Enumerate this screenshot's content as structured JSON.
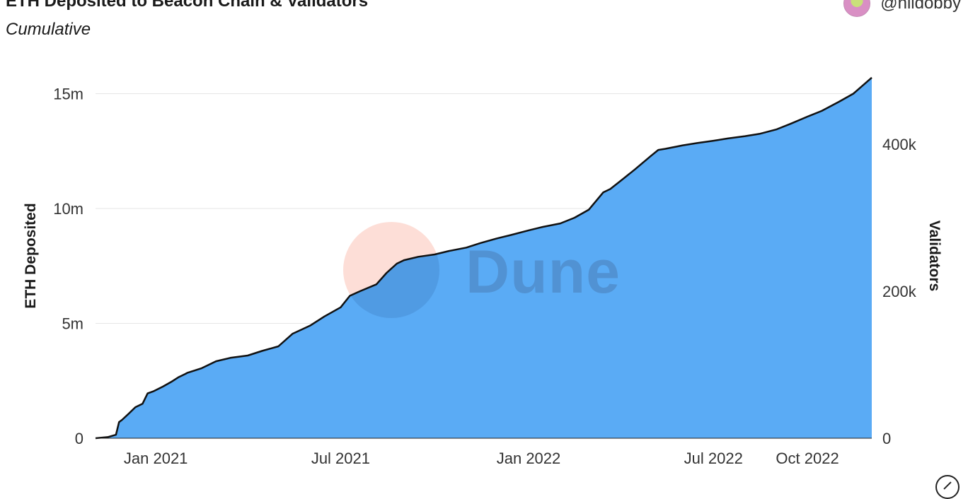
{
  "header": {
    "title": "ETH Deposited to Beacon Chain & Validators",
    "subtitle": "Cumulative",
    "author": "@hildobby",
    "watermark": "Dune"
  },
  "colors": {
    "area_fill": "#5aabf5",
    "line": "#111111",
    "grid": "#e6e6e6",
    "watermark_circle": "#fbc3b6"
  },
  "icons": {
    "expand": "expand-icon"
  },
  "chart_data": {
    "type": "area",
    "title": "ETH Deposited to Beacon Chain & Validators",
    "subtitle": "Cumulative",
    "xlabel": "",
    "ylabel": "ETH Deposited",
    "ylabel_right": "Validators",
    "xlim": [
      "2020-11-03",
      "2022-12-03"
    ],
    "ylim": [
      0,
      16000000
    ],
    "ylim_right": [
      0,
      500000
    ],
    "grid": true,
    "legend": "none",
    "x_ticks": [
      {
        "date": "2021-01-01",
        "label": "Jan 2021"
      },
      {
        "date": "2021-07-01",
        "label": "Jul 2021"
      },
      {
        "date": "2022-01-01",
        "label": "Jan 2022"
      },
      {
        "date": "2022-07-01",
        "label": "Jul 2022"
      },
      {
        "date": "2022-10-01",
        "label": "Oct 2022"
      }
    ],
    "y_ticks_left": [
      {
        "value": 0,
        "label": "0"
      },
      {
        "value": 5000000,
        "label": "5m"
      },
      {
        "value": 10000000,
        "label": "10m"
      },
      {
        "value": 15000000,
        "label": "15m"
      }
    ],
    "y_ticks_right": [
      {
        "value": 0,
        "label": "0"
      },
      {
        "value": 200000,
        "label": "200k"
      },
      {
        "value": 400000,
        "label": "400k"
      }
    ],
    "series": [
      {
        "name": "ETH Deposited",
        "x": [
          "2020-11-03",
          "2020-11-15",
          "2020-11-23",
          "2020-11-26",
          "2020-11-29",
          "2020-12-05",
          "2020-12-12",
          "2020-12-19",
          "2020-12-24",
          "2020-12-30",
          "2021-01-08",
          "2021-01-16",
          "2021-01-23",
          "2021-01-30",
          "2021-02-01",
          "2021-02-15",
          "2021-03-01",
          "2021-03-15",
          "2021-04-01",
          "2021-04-15",
          "2021-05-01",
          "2021-05-15",
          "2021-06-01",
          "2021-06-15",
          "2021-07-01",
          "2021-07-10",
          "2021-07-20",
          "2021-07-28",
          "2021-08-05",
          "2021-08-15",
          "2021-08-25",
          "2021-09-01",
          "2021-09-15",
          "2021-10-01",
          "2021-10-15",
          "2021-11-01",
          "2021-11-15",
          "2021-12-01",
          "2021-12-15",
          "2022-01-01",
          "2022-01-15",
          "2022-02-01",
          "2022-02-15",
          "2022-03-01",
          "2022-03-15",
          "2022-03-22",
          "2022-04-01",
          "2022-04-15",
          "2022-05-01",
          "2022-05-08",
          "2022-05-15",
          "2022-06-01",
          "2022-06-15",
          "2022-07-01",
          "2022-07-15",
          "2022-08-01",
          "2022-08-15",
          "2022-09-01",
          "2022-09-15",
          "2022-10-01",
          "2022-10-15",
          "2022-11-01",
          "2022-11-15",
          "2022-12-03"
        ],
        "values": [
          0,
          50000,
          150000,
          700000,
          800000,
          1050000,
          1350000,
          1500000,
          1950000,
          2050000,
          2250000,
          2450000,
          2650000,
          2800000,
          2850000,
          3050000,
          3350000,
          3500000,
          3600000,
          3800000,
          4000000,
          4550000,
          4900000,
          5300000,
          5700000,
          6200000,
          6400000,
          6550000,
          6700000,
          7200000,
          7600000,
          7750000,
          7900000,
          8000000,
          8150000,
          8300000,
          8500000,
          8700000,
          8850000,
          9050000,
          9200000,
          9350000,
          9600000,
          9950000,
          10700000,
          10850000,
          11200000,
          11700000,
          12300000,
          12550000,
          12600000,
          12750000,
          12850000,
          12950000,
          13050000,
          13150000,
          13250000,
          13450000,
          13700000,
          14000000,
          14250000,
          14650000,
          15000000,
          15700000
        ]
      }
    ]
  }
}
